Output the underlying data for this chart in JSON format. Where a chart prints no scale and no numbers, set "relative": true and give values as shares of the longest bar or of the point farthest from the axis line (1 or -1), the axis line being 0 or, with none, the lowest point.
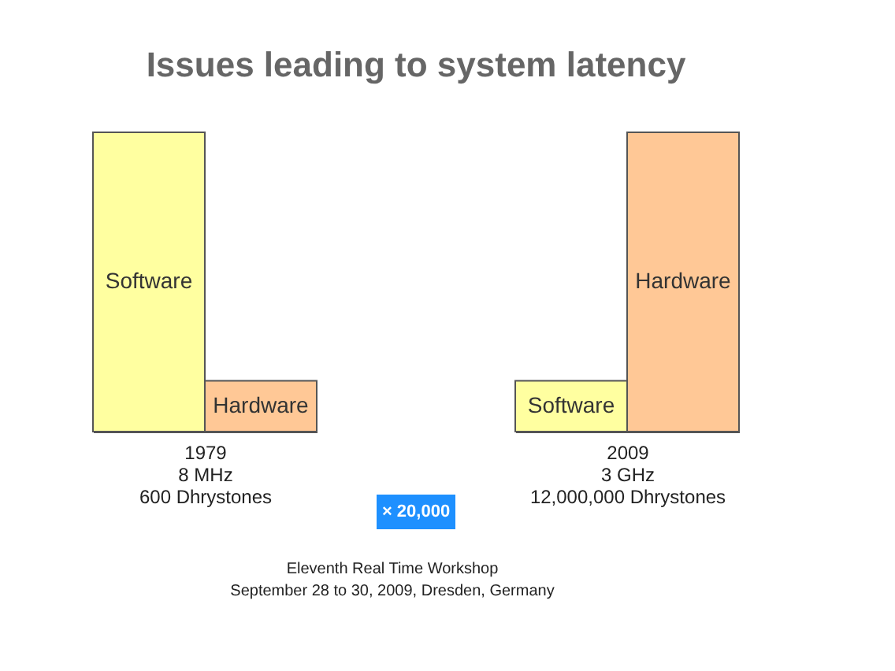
{
  "chart_data": [
    {
      "type": "bar",
      "title": "Issues leading to system latency",
      "categories": [
        "Software",
        "Hardware"
      ],
      "values": [
        1,
        0.17
      ],
      "colors": [
        "#ffffa0",
        "#ffc896"
      ],
      "relative": true,
      "xlabel": [
        "1979",
        "8 MHz",
        "600 Dhrystones"
      ]
    },
    {
      "type": "bar",
      "categories": [
        "Software",
        "Hardware"
      ],
      "values": [
        0.17,
        1
      ],
      "colors": [
        "#ffffa0",
        "#ffc896"
      ],
      "relative": true,
      "xlabel": [
        "2009",
        "3 GHz",
        "12,000,000 Dhrystones"
      ],
      "annotations": [
        "× 20,000",
        "Eleventh Real Time Workshop",
        "September 28 to 30, 2009, Dresden, Germany"
      ]
    }
  ]
}
